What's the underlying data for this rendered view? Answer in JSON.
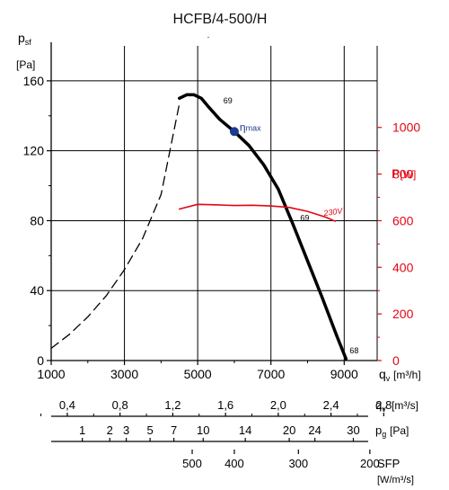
{
  "chart_data": {
    "type": "line",
    "title": "HCFB/4-500/H",
    "subtitle": "-",
    "y_axis": {
      "label_main": "p",
      "label_sub": "sf",
      "unit": "[Pa]",
      "range": [
        0,
        180
      ],
      "ticks": [
        0,
        40,
        80,
        120,
        160
      ]
    },
    "x_axis": {
      "label_main": "q",
      "label_sub": "v",
      "unit": "[m³/h]",
      "range": [
        1000,
        9900
      ],
      "ticks": [
        1000,
        3000,
        5000,
        7000,
        9000
      ],
      "tick_labels": [
        "1000",
        "3000",
        "5000",
        "7000",
        "9000"
      ]
    },
    "right_axis": {
      "label_main": "P",
      "unit": "[W]",
      "range": [
        0,
        1350
      ],
      "ticks": [
        0,
        200,
        400,
        600,
        800,
        1000
      ],
      "color": "#e30613"
    },
    "scale_m3s": {
      "label_main": "q",
      "label_sub": "v",
      "unit": "[m³/s]",
      "ticks": [
        0.4,
        0.8,
        1.2,
        1.6,
        2.0,
        2.4,
        2.8
      ],
      "tick_labels": [
        "0,4",
        "0,8",
        "1,2",
        "1,6",
        "2,0",
        "2,4",
        "2,8"
      ]
    },
    "scale_pg": {
      "label_main": "p",
      "label_sub": "g",
      "unit": "[Pa]",
      "ticks": [
        1,
        2,
        3,
        5,
        7,
        10,
        14,
        20,
        24,
        30
      ],
      "tick_x": [
        1850,
        2600,
        3050,
        3700,
        4350,
        5150,
        6300,
        7500,
        8200,
        9250
      ]
    },
    "scale_sfp": {
      "label": "SFP",
      "unit": "[W/m³/s]",
      "ticks": [
        500,
        400,
        300,
        200
      ],
      "tick_x": [
        4850,
        6000,
        7750,
        9700
      ]
    },
    "series": [
      {
        "name": "dashed",
        "style": "dashed",
        "color": "#000000",
        "x": [
          1000,
          1500,
          2000,
          2500,
          3000,
          3500,
          4000,
          4500
        ],
        "y": [
          7,
          15,
          25,
          37,
          52,
          70,
          95,
          147
        ]
      },
      {
        "name": "fan",
        "style": "solid",
        "color": "#000000",
        "x": [
          4500,
          4700,
          4900,
          5100,
          5300,
          5600,
          6000,
          6400,
          6800,
          7200,
          7600,
          8000,
          8400,
          8800,
          9050
        ],
        "y": [
          150,
          152,
          152,
          150,
          145,
          138,
          131,
          123,
          112,
          98,
          78,
          57,
          36,
          14,
          1
        ]
      },
      {
        "name": "power",
        "style": "solid",
        "color": "#e30613",
        "axis": "right",
        "x": [
          4500,
          5000,
          5500,
          6000,
          6500,
          7000,
          7500,
          8000,
          8500,
          8750
        ],
        "y": [
          650,
          670,
          668,
          665,
          666,
          663,
          657,
          640,
          615,
          598
        ]
      }
    ],
    "annotations": [
      {
        "text": "69",
        "x": 5700,
        "y": 147
      },
      {
        "text": "69",
        "x": 7800,
        "y": 80
      },
      {
        "text": "68",
        "x": 9150,
        "y": 4
      },
      {
        "text": "230V",
        "x": 8450,
        "y": 620,
        "axis": "right",
        "color": "#e30613"
      }
    ],
    "eta_max": {
      "label": "η",
      "label_sub": "max",
      "x": 6000,
      "y": 131,
      "color": "#1f3a93"
    },
    "grid": true
  }
}
